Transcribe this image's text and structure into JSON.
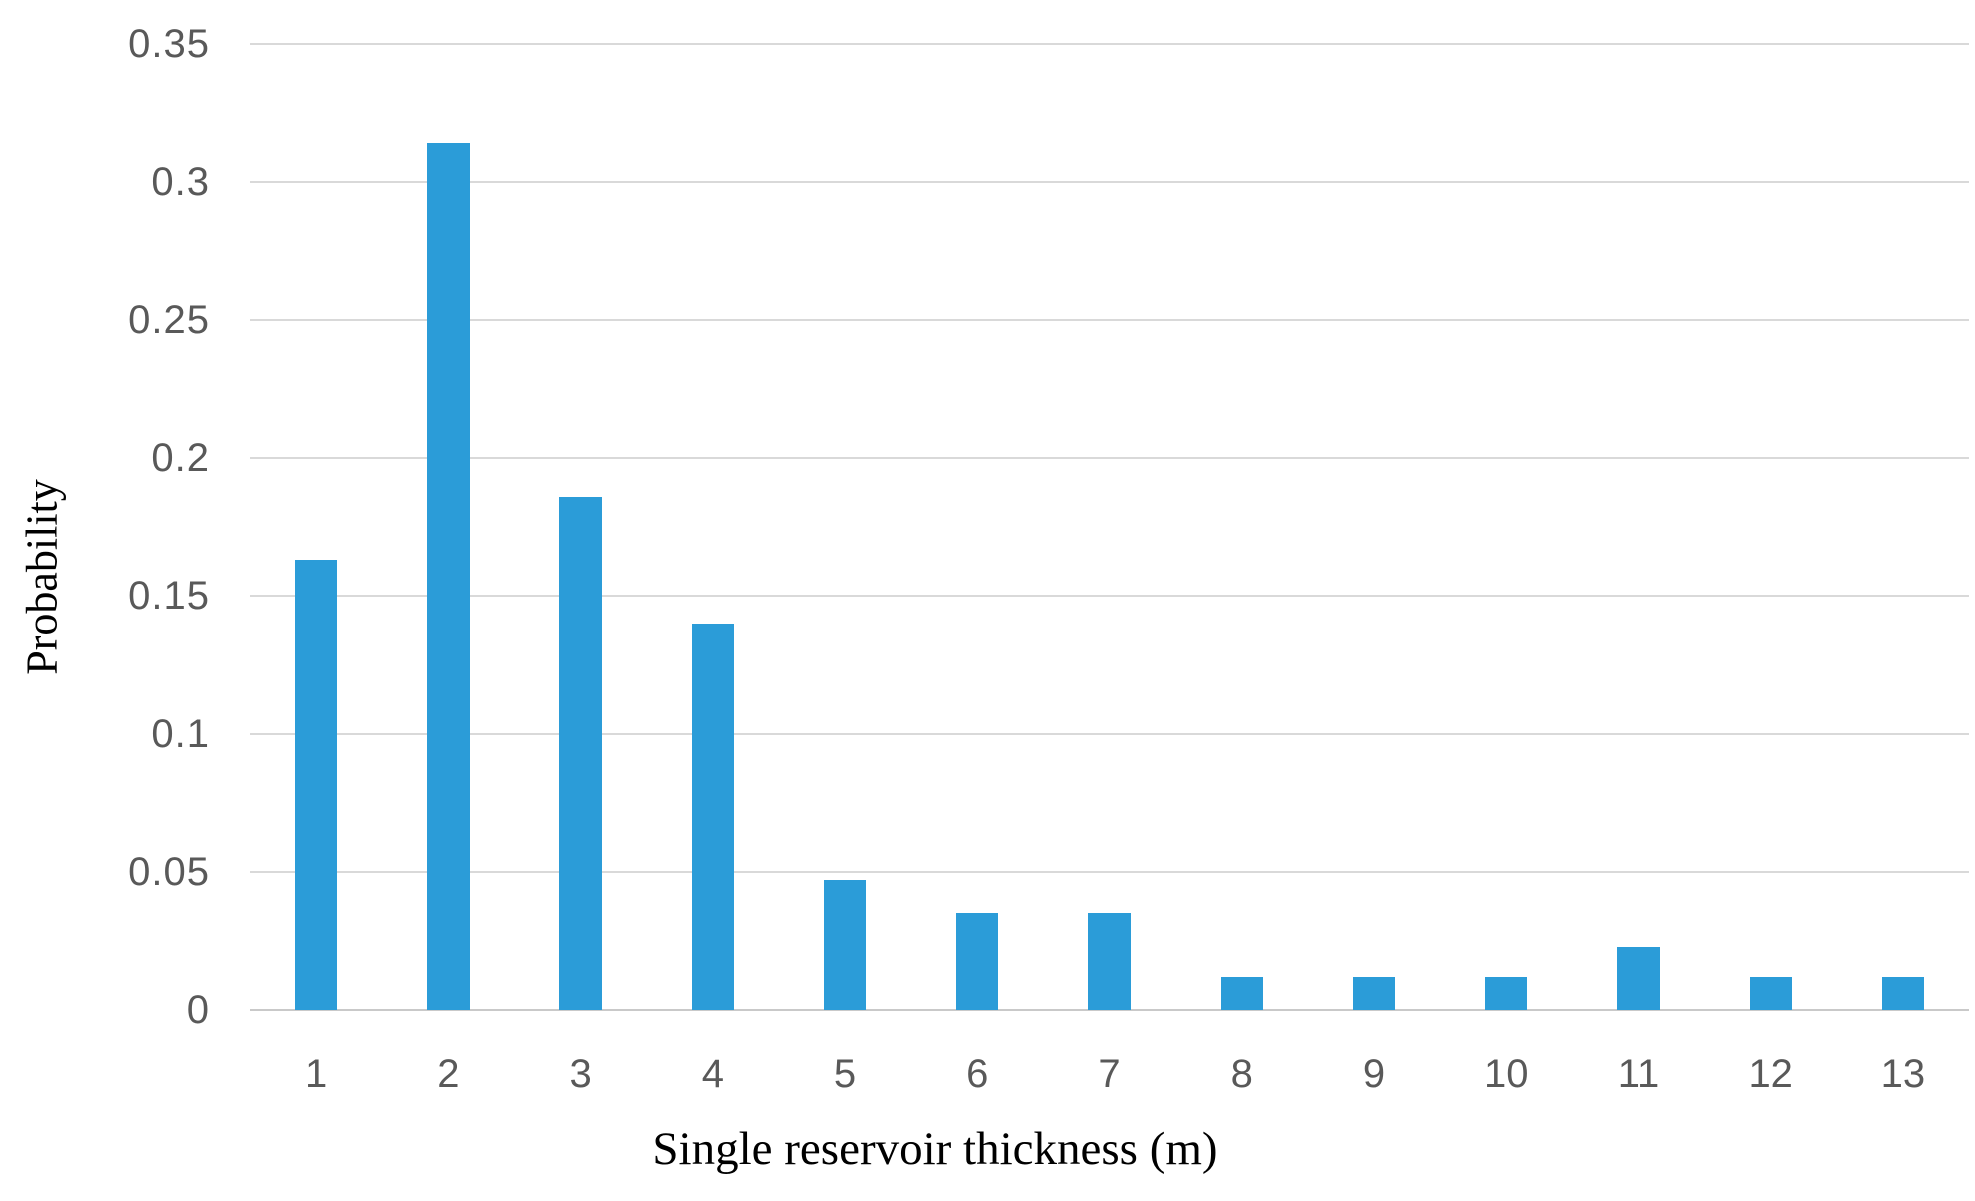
{
  "chart_data": {
    "type": "bar",
    "title": "",
    "xlabel": "Single reservoir thickness (m)",
    "ylabel": "Probability",
    "categories": [
      "1",
      "2",
      "3",
      "4",
      "5",
      "6",
      "7",
      "8",
      "9",
      "10",
      "11",
      "12",
      "13"
    ],
    "values": [
      0.163,
      0.314,
      0.186,
      0.14,
      0.047,
      0.035,
      0.035,
      0.012,
      0.012,
      0.012,
      0.023,
      0.012,
      0.012
    ],
    "ylim": [
      0,
      0.35
    ],
    "ytick_step": 0.05,
    "yticks": [
      "0.35",
      "0.3",
      "0.25",
      "0.2",
      "0.15",
      "0.1",
      "0.05",
      "0"
    ],
    "grid": true,
    "legend": "none",
    "colors": {
      "bar": "#2B9CD8",
      "gridline": "#D9D9D9",
      "baseline": "#C9C9C9",
      "tick_label": "#595959",
      "axis_title": "#000000"
    }
  }
}
